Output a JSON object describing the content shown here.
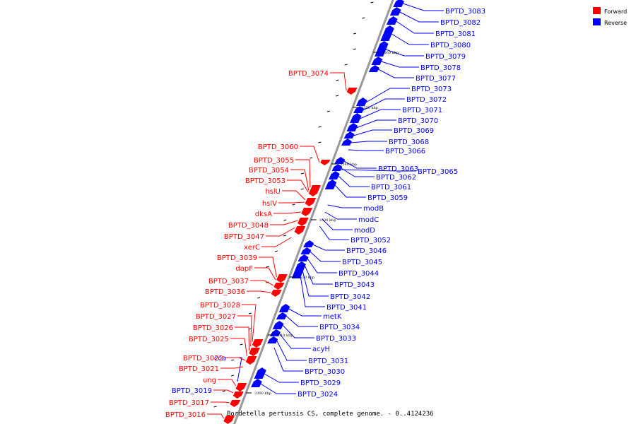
{
  "caption": "Bordetella pertussis CS, complete genome. - 0..4124236",
  "legend": [
    {
      "label": "Forward",
      "color": "#ff0000"
    },
    {
      "label": "Reverse",
      "color": "#0000ff"
    }
  ],
  "colors": {
    "forward": "#ff0000",
    "reverse": "#0000ff",
    "backbone": "#999999"
  },
  "ticks": [
    "3360 kbp",
    "3350 kbp",
    "3340 kbp",
    "3330 kbp",
    "3320 kbp",
    "3310 kbp",
    "3300 kbp"
  ],
  "reverse_labels": [
    "BPTD_3083",
    "BPTD_3082",
    "BPTD_3081",
    "BPTD_3080",
    "BPTD_3079",
    "BPTD_3078",
    "BPTD_3077",
    "BPTD_3073",
    "BPTD_3072",
    "BPTD_3071",
    "BPTD_3070",
    "BPTD_3069",
    "BPTD_3068",
    "BPTD_3066",
    "BPTD_3065",
    "BPTD_3063",
    "BPTD_3062",
    "BPTD_3061",
    "BPTD_3059",
    "modB",
    "modC",
    "modD",
    "BPTD_3052",
    "BPTD_3046",
    "BPTD_3045",
    "BPTD_3044",
    "BPTD_3043",
    "BPTD_3042",
    "BPTD_3041",
    "metK",
    "BPTD_3034",
    "BPTD_3033",
    "acyH",
    "BPTD_3031",
    "BPTD_3030",
    "BPTD_3029",
    "BPTD_3024"
  ],
  "forward_labels": [
    "BPTD_3074",
    "BPTD_3060",
    "BPTD_3055",
    "BPTD_3054",
    "BPTD_3053",
    "hslU",
    "hslV",
    "dksA",
    "BPTD_3048",
    "BPTD_3047",
    "xerC",
    "BPTD_3039",
    "dapF",
    "BPTD_3037",
    "BPTD_3036",
    "BPTD_3028",
    "BPTD_3027",
    "BPTD_3026",
    "BPTD_3025",
    "cca",
    "BPTD_3022",
    "BPTD_3021",
    "ung",
    "BPTD_3019",
    "BPTD_3017",
    "BPTD_3016"
  ]
}
